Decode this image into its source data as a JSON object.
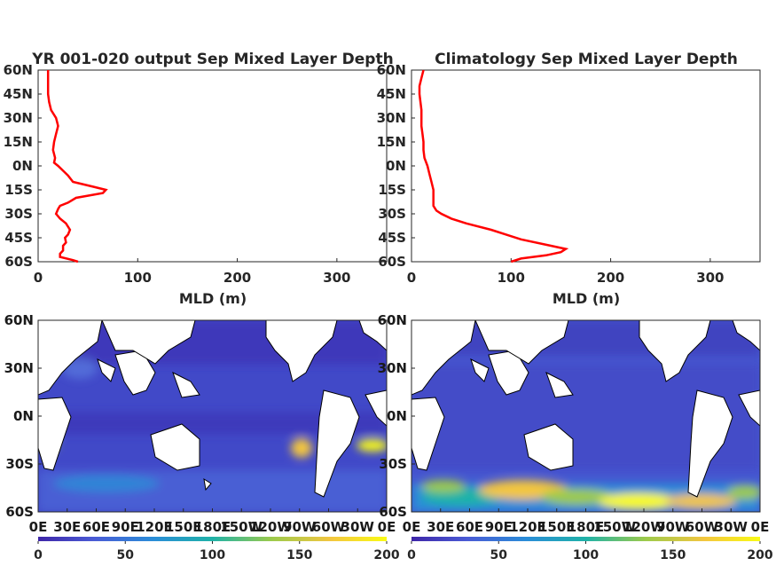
{
  "chart_data": [
    {
      "type": "line",
      "title": "YR 001-020 output Sep Mixed Layer Depth",
      "xlabel": "MLD (m)",
      "ylabel": "",
      "xlim": [
        0,
        350
      ],
      "ylim": [
        -60,
        60
      ],
      "xticks": [
        "0",
        "100",
        "200",
        "300"
      ],
      "yticks": [
        "60N",
        "45N",
        "30N",
        "15N",
        "0N",
        "15S",
        "30S",
        "45S",
        "60S"
      ],
      "grid": false,
      "color": "#ff0000",
      "series": [
        {
          "lat": [
            60,
            55,
            50,
            45,
            40,
            35,
            30,
            25,
            20,
            15,
            10,
            5,
            2,
            0,
            -3,
            -6,
            -10,
            -13,
            -15,
            -17,
            -20,
            -23,
            -25,
            -27,
            -30,
            -33,
            -36,
            -40,
            -43,
            -45,
            -48,
            -50,
            -53,
            -55,
            -57,
            -59,
            -60
          ],
          "mld": [
            10,
            10,
            10,
            10,
            11,
            13,
            18,
            20,
            18,
            16,
            15,
            17,
            16,
            20,
            25,
            30,
            35,
            55,
            68,
            65,
            38,
            30,
            22,
            20,
            18,
            22,
            28,
            32,
            30,
            27,
            28,
            25,
            25,
            22,
            22,
            35,
            40
          ]
        }
      ]
    },
    {
      "type": "line",
      "title": "Climatology Sep Mixed Layer Depth",
      "xlabel": "MLD (m)",
      "ylabel": "",
      "xlim": [
        0,
        350
      ],
      "ylim": [
        -60,
        60
      ],
      "xticks": [
        "0",
        "100",
        "200",
        "300"
      ],
      "yticks": [
        "60N",
        "45N",
        "30N",
        "15N",
        "0N",
        "15S",
        "30S",
        "45S",
        "60S"
      ],
      "grid": false,
      "color": "#ff0000",
      "series": [
        {
          "lat": [
            60,
            55,
            50,
            45,
            40,
            35,
            30,
            25,
            20,
            15,
            10,
            5,
            0,
            -5,
            -10,
            -15,
            -20,
            -25,
            -28,
            -30,
            -33,
            -36,
            -40,
            -43,
            -46,
            -50,
            -52,
            -54,
            -56,
            -58,
            -60
          ],
          "mld": [
            12,
            10,
            8,
            8,
            9,
            10,
            10,
            10,
            11,
            12,
            12,
            13,
            16,
            18,
            20,
            22,
            22,
            22,
            25,
            30,
            40,
            55,
            80,
            95,
            110,
            140,
            155,
            150,
            135,
            110,
            100
          ]
        }
      ]
    },
    {
      "type": "heatmap",
      "title": "",
      "xticks": [
        "0E",
        "30E",
        "60E",
        "90E",
        "120E",
        "150E",
        "180E",
        "150W",
        "120W",
        "90W",
        "60W",
        "30W",
        "0E"
      ],
      "yticks": [
        "60N",
        "30N",
        "0N",
        "30S",
        "60S"
      ],
      "colorbar_ticks": [
        "0",
        "50",
        "100",
        "150",
        "200"
      ],
      "colorbar_range": [
        0,
        200
      ],
      "colormap": [
        "#3e26a8",
        "#4a5bd5",
        "#2a8dd8",
        "#1fb2a8",
        "#9cca4c",
        "#f3c640",
        "#f9fb15"
      ]
    },
    {
      "type": "heatmap",
      "title": "",
      "xticks": [
        "0E",
        "30E",
        "60E",
        "90E",
        "120E",
        "150E",
        "180E",
        "150W",
        "120W",
        "90W",
        "60W",
        "30W",
        "0E"
      ],
      "yticks": [
        "60N",
        "30N",
        "0N",
        "30S",
        "60S"
      ],
      "colorbar_ticks": [
        "0",
        "50",
        "100",
        "150",
        "200"
      ],
      "colorbar_range": [
        0,
        200
      ],
      "colormap": [
        "#3e26a8",
        "#4a5bd5",
        "#2a8dd8",
        "#1fb2a8",
        "#9cca4c",
        "#f3c640",
        "#f9fb15"
      ]
    }
  ]
}
